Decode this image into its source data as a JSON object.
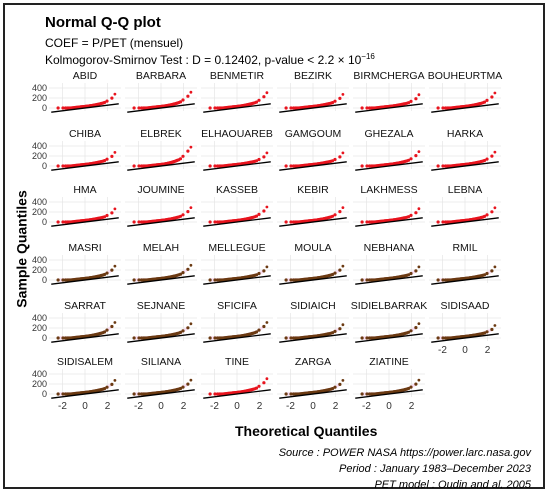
{
  "header": {
    "title": "Normal Q-Q plot",
    "subtitle": "COEF = P/PET (mensuel)",
    "test_prefix": "Kolmogorov-Smirnov Test : D = 0.12402, p-value < 2.2 × 10",
    "test_exponent": "−16"
  },
  "axes": {
    "xlabel": "Theoretical Quantiles",
    "ylabel": "Sample Quantiles"
  },
  "source": {
    "line1": "Source : POWER NASA https://power.larc.nasa.gov",
    "line2": "Period : January 1983–December 2023",
    "line3": "PET model : Oudin and al. 2005"
  },
  "colors": {
    "points_red": "#e8141e",
    "points_brown": "#6b3a12",
    "reference_line": "#000000",
    "band_pink": "#f7d7ef",
    "grid": "#e6e6e6"
  },
  "chart_data": {
    "type": "scatter",
    "subtype": "normal-qq-facets",
    "x_ticks": [
      "-2",
      "0",
      "2"
    ],
    "y_ticks": [
      "0",
      "200",
      "400"
    ],
    "xlim": [
      -3.2,
      3.2
    ],
    "ylim": [
      -60,
      500
    ],
    "reference_line": {
      "intercept": 0,
      "slope": 28
    },
    "facets": [
      {
        "name": "ABID",
        "color": "red",
        "curve": 1.0
      },
      {
        "name": "BARBARA",
        "color": "red",
        "curve": 1.35
      },
      {
        "name": "BENMETIR",
        "color": "red",
        "curve": 1.25
      },
      {
        "name": "BEZIRK",
        "color": "red",
        "curve": 0.95
      },
      {
        "name": "BIRMCHERGA",
        "color": "red",
        "curve": 0.9
      },
      {
        "name": "BOUHEURTMA",
        "color": "red",
        "curve": 1.2
      },
      {
        "name": "CHIBA",
        "color": "red",
        "curve": 0.95
      },
      {
        "name": "ELBREK",
        "color": "red",
        "curve": 1.9
      },
      {
        "name": "ELHAOUAREB",
        "color": "red",
        "curve": 0.85
      },
      {
        "name": "GAMGOUM",
        "color": "red",
        "curve": 0.85
      },
      {
        "name": "GHEZALA",
        "color": "red",
        "curve": 1.1
      },
      {
        "name": "HARKA",
        "color": "red",
        "curve": 1.0
      },
      {
        "name": "HMA",
        "color": "red",
        "curve": 0.85
      },
      {
        "name": "JOUMINE",
        "color": "red",
        "curve": 1.1
      },
      {
        "name": "KASSEB",
        "color": "red",
        "curve": 1.2
      },
      {
        "name": "KEBIR",
        "color": "red",
        "curve": 1.1
      },
      {
        "name": "LAKHMESS",
        "color": "red",
        "curve": 0.9
      },
      {
        "name": "LEBNA",
        "color": "red",
        "curve": 1.05
      },
      {
        "name": "MASRI",
        "color": "brown",
        "curve": 1.0
      },
      {
        "name": "MELAH",
        "color": "brown",
        "curve": 1.15
      },
      {
        "name": "MELLEGUE",
        "color": "brown",
        "curve": 0.85
      },
      {
        "name": "MOULA",
        "color": "brown",
        "curve": 1.0
      },
      {
        "name": "NEBHANA",
        "color": "brown",
        "curve": 0.85
      },
      {
        "name": "RMIL",
        "color": "brown",
        "curve": 0.85
      },
      {
        "name": "SARRAT",
        "color": "brown",
        "curve": 1.3
      },
      {
        "name": "SEJNANE",
        "color": "brown",
        "curve": 1.05
      },
      {
        "name": "SFICIFA",
        "color": "brown",
        "curve": 1.3
      },
      {
        "name": "SIDIAICH",
        "color": "brown",
        "curve": 0.9
      },
      {
        "name": "SIDIELBARRAK",
        "color": "brown",
        "curve": 1.1
      },
      {
        "name": "SIDISAAD",
        "color": "brown",
        "curve": 0.75
      },
      {
        "name": "SIDISALEM",
        "color": "brown",
        "curve": 0.95
      },
      {
        "name": "SILIANA",
        "color": "brown",
        "curve": 1.0
      },
      {
        "name": "TINE",
        "color": "red",
        "curve": 1.25
      },
      {
        "name": "ZARGA",
        "color": "brown",
        "curve": 0.95
      },
      {
        "name": "ZIATINE",
        "color": "brown",
        "curve": 1.0
      }
    ]
  }
}
